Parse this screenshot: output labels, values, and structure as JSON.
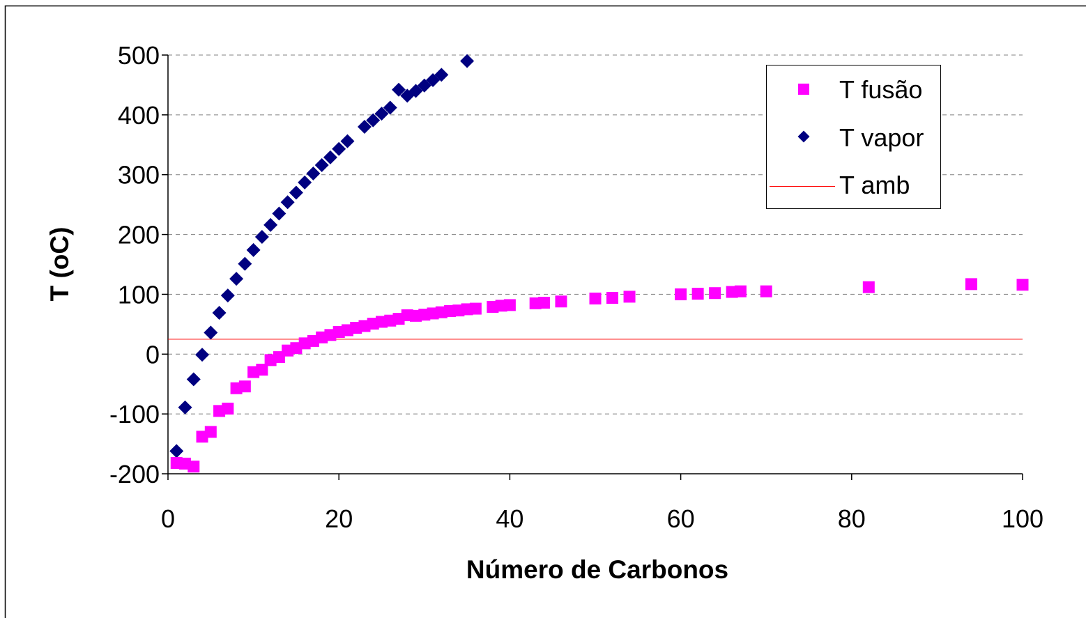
{
  "chart_data": {
    "type": "scatter",
    "xlabel": "Número de Carbonos",
    "ylabel": "T (oC)",
    "xlim": [
      0,
      100
    ],
    "ylim": [
      -200,
      500
    ],
    "x_ticks": [
      "0",
      "20",
      "40",
      "60",
      "80",
      "100"
    ],
    "y_ticks": [
      "-200",
      "-100",
      "0",
      "100",
      "200",
      "300",
      "400",
      "500"
    ],
    "grid": "horizontal dashed",
    "legend_position": "top-right",
    "series": [
      {
        "name": "T fusão",
        "marker": "square",
        "color": "#FF00FF",
        "points": [
          [
            1,
            -182
          ],
          [
            2,
            -183
          ],
          [
            3,
            -188
          ],
          [
            4,
            -138
          ],
          [
            5,
            -130
          ],
          [
            6,
            -95
          ],
          [
            7,
            -91
          ],
          [
            8,
            -57
          ],
          [
            9,
            -54
          ],
          [
            10,
            -30
          ],
          [
            11,
            -26
          ],
          [
            12,
            -10
          ],
          [
            13,
            -5
          ],
          [
            14,
            6
          ],
          [
            15,
            10
          ],
          [
            16,
            18
          ],
          [
            17,
            22
          ],
          [
            18,
            28
          ],
          [
            19,
            32
          ],
          [
            20,
            37
          ],
          [
            21,
            40
          ],
          [
            22,
            44
          ],
          [
            23,
            47
          ],
          [
            24,
            51
          ],
          [
            25,
            54
          ],
          [
            26,
            56
          ],
          [
            27,
            59
          ],
          [
            28,
            65
          ],
          [
            29,
            64
          ],
          [
            30,
            66
          ],
          [
            31,
            68
          ],
          [
            32,
            70
          ],
          [
            33,
            72
          ],
          [
            34,
            73
          ],
          [
            35,
            75
          ],
          [
            36,
            76
          ],
          [
            38,
            79
          ],
          [
            39,
            81
          ],
          [
            40,
            82
          ],
          [
            43,
            85
          ],
          [
            44,
            86
          ],
          [
            46,
            88
          ],
          [
            50,
            93
          ],
          [
            52,
            94
          ],
          [
            54,
            96
          ],
          [
            60,
            100
          ],
          [
            62,
            101
          ],
          [
            64,
            102
          ],
          [
            66,
            104
          ],
          [
            67,
            105
          ],
          [
            70,
            105
          ],
          [
            82,
            112
          ],
          [
            94,
            117
          ],
          [
            100,
            116
          ]
        ]
      },
      {
        "name": "T vapor",
        "marker": "diamond",
        "color": "#000080",
        "points": [
          [
            1,
            -162
          ],
          [
            2,
            -89
          ],
          [
            3,
            -42
          ],
          [
            4,
            -1
          ],
          [
            5,
            36
          ],
          [
            6,
            69
          ],
          [
            7,
            98
          ],
          [
            8,
            126
          ],
          [
            9,
            151
          ],
          [
            10,
            174
          ],
          [
            11,
            196
          ],
          [
            12,
            216
          ],
          [
            13,
            235
          ],
          [
            14,
            254
          ],
          [
            15,
            270
          ],
          [
            16,
            287
          ],
          [
            17,
            302
          ],
          [
            18,
            316
          ],
          [
            19,
            329
          ],
          [
            20,
            343
          ],
          [
            21,
            356
          ],
          [
            23,
            380
          ],
          [
            24,
            391
          ],
          [
            25,
            402
          ],
          [
            26,
            412
          ],
          [
            27,
            442
          ],
          [
            28,
            432
          ],
          [
            29,
            440
          ],
          [
            30,
            449
          ],
          [
            31,
            458
          ],
          [
            32,
            467
          ],
          [
            35,
            490
          ]
        ]
      },
      {
        "name": "T amb",
        "marker": "line",
        "color": "#FF0000",
        "y": 25
      }
    ]
  }
}
